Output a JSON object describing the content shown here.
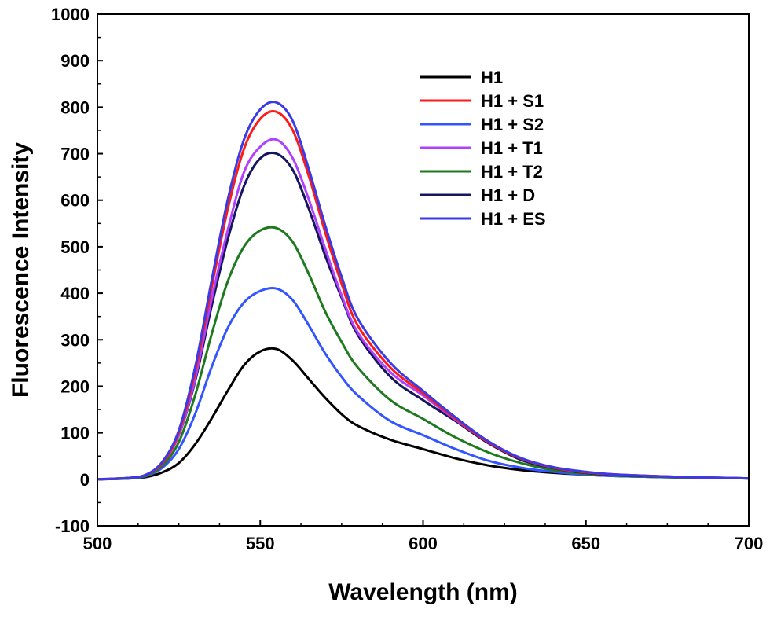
{
  "chart_data": {
    "type": "line",
    "xlabel": "Wavelength (nm)",
    "ylabel": "Fluorescence Intensity",
    "xlim": [
      500,
      700
    ],
    "ylim": [
      -100,
      1000
    ],
    "xticks": [
      500,
      550,
      600,
      650,
      700
    ],
    "yticks": [
      -100,
      0,
      100,
      200,
      300,
      400,
      500,
      600,
      700,
      800,
      900,
      1000
    ],
    "legend_position": "top-right",
    "grid": false,
    "series": [
      {
        "name": "H1",
        "color": "#000000",
        "x": [
          500,
          510,
          515,
          520,
          525,
          530,
          535,
          540,
          545,
          550,
          555,
          560,
          565,
          570,
          575,
          580,
          590,
          600,
          610,
          620,
          630,
          640,
          650,
          660,
          680,
          700
        ],
        "y": [
          0,
          2,
          5,
          15,
          35,
          75,
          130,
          190,
          245,
          275,
          280,
          255,
          215,
          175,
          140,
          115,
          85,
          65,
          45,
          30,
          20,
          14,
          10,
          7,
          4,
          2
        ]
      },
      {
        "name": "H1 + S1",
        "color": "#ff1a1a",
        "x": [
          500,
          510,
          515,
          520,
          525,
          530,
          535,
          540,
          545,
          550,
          555,
          560,
          565,
          570,
          575,
          580,
          590,
          600,
          610,
          620,
          630,
          640,
          650,
          660,
          680,
          700
        ],
        "y": [
          0,
          3,
          10,
          35,
          100,
          230,
          410,
          580,
          710,
          775,
          790,
          750,
          650,
          530,
          420,
          330,
          240,
          185,
          130,
          80,
          45,
          25,
          15,
          10,
          5,
          2
        ]
      },
      {
        "name": "H1 + S2",
        "color": "#3355ff",
        "x": [
          500,
          510,
          515,
          520,
          525,
          530,
          535,
          540,
          545,
          550,
          555,
          560,
          565,
          570,
          575,
          580,
          590,
          600,
          610,
          620,
          630,
          640,
          650,
          660,
          680,
          700
        ],
        "y": [
          0,
          2,
          7,
          25,
          65,
          140,
          240,
          325,
          380,
          405,
          410,
          385,
          330,
          270,
          220,
          180,
          125,
          95,
          65,
          40,
          25,
          16,
          10,
          7,
          4,
          2
        ]
      },
      {
        "name": "H1 + T1",
        "color": "#b040ff",
        "x": [
          500,
          510,
          515,
          520,
          525,
          530,
          535,
          540,
          545,
          550,
          555,
          560,
          565,
          570,
          575,
          580,
          590,
          600,
          610,
          620,
          630,
          640,
          650,
          660,
          680,
          700
        ],
        "y": [
          0,
          3,
          10,
          35,
          95,
          215,
          385,
          535,
          660,
          715,
          730,
          690,
          600,
          495,
          395,
          315,
          230,
          180,
          128,
          80,
          45,
          25,
          15,
          10,
          5,
          2
        ]
      },
      {
        "name": "H1 + T2",
        "color": "#1f7a1f",
        "x": [
          500,
          510,
          515,
          520,
          525,
          530,
          535,
          540,
          545,
          550,
          555,
          560,
          565,
          570,
          575,
          580,
          590,
          600,
          610,
          620,
          630,
          640,
          650,
          660,
          680,
          700
        ],
        "y": [
          0,
          2,
          8,
          30,
          80,
          180,
          310,
          425,
          500,
          535,
          540,
          510,
          440,
          360,
          295,
          240,
          170,
          130,
          90,
          58,
          35,
          20,
          12,
          8,
          4,
          2
        ]
      },
      {
        "name": "H1 + D",
        "color": "#151560",
        "x": [
          500,
          510,
          515,
          520,
          525,
          530,
          535,
          540,
          545,
          550,
          555,
          560,
          565,
          570,
          575,
          580,
          590,
          600,
          610,
          620,
          630,
          640,
          650,
          660,
          680,
          700
        ],
        "y": [
          0,
          3,
          10,
          35,
          95,
          210,
          370,
          515,
          630,
          690,
          700,
          665,
          580,
          480,
          390,
          310,
          220,
          170,
          125,
          78,
          42,
          24,
          14,
          9,
          5,
          2
        ]
      },
      {
        "name": "H1 + ES",
        "color": "#3a3ae6",
        "x": [
          500,
          510,
          515,
          520,
          525,
          530,
          535,
          540,
          545,
          550,
          555,
          560,
          565,
          570,
          575,
          580,
          590,
          600,
          610,
          620,
          630,
          640,
          650,
          660,
          680,
          700
        ],
        "y": [
          0,
          3,
          10,
          38,
          105,
          240,
          425,
          600,
          730,
          795,
          810,
          770,
          665,
          545,
          435,
          345,
          250,
          190,
          133,
          82,
          46,
          26,
          16,
          10,
          5,
          2
        ]
      }
    ]
  }
}
